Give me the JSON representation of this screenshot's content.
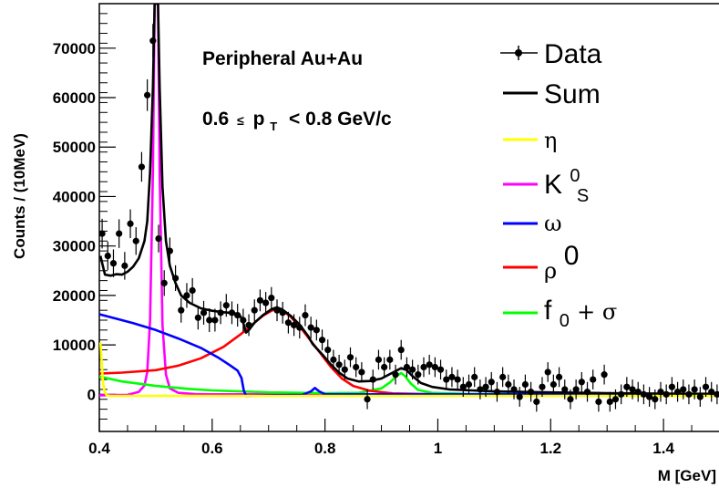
{
  "chart_data": {
    "type": "line",
    "annotation_lines": [
      {
        "text": "Peripheral Au+Au"
      },
      {
        "prefix": "0.6",
        "leq": "≤",
        "p": "p",
        "sub": "T",
        "suffix": "< 0.8 GeV/c"
      }
    ],
    "xlabel": "M [GeV]",
    "ylabel": "Counts / (10MeV)",
    "xlim": [
      0.4,
      1.5
    ],
    "ylim": [
      -7500,
      79000
    ],
    "xticks": [
      0.4,
      0.6,
      0.8,
      1,
      1.2,
      1.4
    ],
    "xtick_labels": [
      "0.4",
      "0.6",
      "0.8",
      "1",
      "1.2",
      "1.4"
    ],
    "yticks": [
      0,
      10000,
      20000,
      30000,
      40000,
      50000,
      60000,
      70000
    ],
    "ytick_labels": [
      "0",
      "10000",
      "20000",
      "30000",
      "40000",
      "50000",
      "60000",
      "70000"
    ],
    "legend": [
      {
        "label": "Data",
        "kind": "marker",
        "color": "#000000"
      },
      {
        "label": "Sum",
        "kind": "line",
        "color": "#000000"
      },
      {
        "label": "η",
        "kind": "line",
        "color": "#ffff00"
      },
      {
        "label": "K",
        "sup": "0",
        "sub": "S",
        "kind": "line",
        "color": "#ff00ff"
      },
      {
        "label": "ω",
        "kind": "line",
        "color": "#0000ff"
      },
      {
        "label": "ρ",
        "sup": "0",
        "kind": "line",
        "color": "#ff0000"
      },
      {
        "label": "f",
        "sub": "0",
        "suffix": " + σ",
        "kind": "line",
        "color": "#00ff00"
      }
    ],
    "data_points": [
      [
        0.405,
        32500,
        3000
      ],
      [
        0.415,
        28000,
        2900
      ],
      [
        0.425,
        26500,
        2800
      ],
      [
        0.435,
        32500,
        2900
      ],
      [
        0.445,
        26000,
        2800
      ],
      [
        0.455,
        34500,
        2900
      ],
      [
        0.465,
        31000,
        2800
      ],
      [
        0.475,
        46000,
        3000
      ],
      [
        0.485,
        60500,
        3200
      ],
      [
        0.495,
        71500,
        3400
      ],
      [
        0.505,
        31500,
        2800
      ],
      [
        0.515,
        22500,
        2600
      ],
      [
        0.525,
        29000,
        2700
      ],
      [
        0.535,
        23500,
        2600
      ],
      [
        0.545,
        17000,
        2500
      ],
      [
        0.555,
        20000,
        2500
      ],
      [
        0.565,
        21000,
        2500
      ],
      [
        0.575,
        15500,
        2400
      ],
      [
        0.585,
        16500,
        2400
      ],
      [
        0.595,
        15000,
        2400
      ],
      [
        0.605,
        15000,
        2300
      ],
      [
        0.615,
        16500,
        2300
      ],
      [
        0.625,
        18000,
        2300
      ],
      [
        0.635,
        16500,
        2300
      ],
      [
        0.645,
        16000,
        2300
      ],
      [
        0.655,
        15000,
        2300
      ],
      [
        0.665,
        14000,
        2200
      ],
      [
        0.675,
        17000,
        2200
      ],
      [
        0.685,
        19000,
        2200
      ],
      [
        0.695,
        18500,
        2200
      ],
      [
        0.705,
        19500,
        2200
      ],
      [
        0.715,
        17000,
        2200
      ],
      [
        0.725,
        16500,
        2200
      ],
      [
        0.735,
        14500,
        2200
      ],
      [
        0.745,
        14000,
        2200
      ],
      [
        0.755,
        13500,
        2200
      ],
      [
        0.765,
        16000,
        2200
      ],
      [
        0.775,
        13500,
        2200
      ],
      [
        0.785,
        13000,
        2100
      ],
      [
        0.795,
        11000,
        2100
      ],
      [
        0.805,
        9000,
        2100
      ],
      [
        0.815,
        7000,
        2000
      ],
      [
        0.825,
        6000,
        2000
      ],
      [
        0.835,
        5000,
        2000
      ],
      [
        0.845,
        7500,
        2000
      ],
      [
        0.855,
        5500,
        2000
      ],
      [
        0.865,
        4500,
        2000
      ],
      [
        0.875,
        -1000,
        2000
      ],
      [
        0.885,
        3000,
        2000
      ],
      [
        0.895,
        7000,
        2000
      ],
      [
        0.905,
        5500,
        2000
      ],
      [
        0.915,
        7000,
        2000
      ],
      [
        0.925,
        4000,
        2000
      ],
      [
        0.935,
        9000,
        2000
      ],
      [
        0.945,
        5500,
        2000
      ],
      [
        0.955,
        5000,
        2000
      ],
      [
        0.965,
        4000,
        2000
      ],
      [
        0.975,
        5500,
        2000
      ],
      [
        0.985,
        6000,
        2000
      ],
      [
        0.995,
        5500,
        2000
      ],
      [
        1.005,
        5000,
        2000
      ],
      [
        1.015,
        3000,
        2000
      ],
      [
        1.025,
        3500,
        2000
      ],
      [
        1.035,
        3000,
        2000
      ],
      [
        1.045,
        1500,
        2000
      ],
      [
        1.055,
        2000,
        2000
      ],
      [
        1.065,
        3500,
        2000
      ],
      [
        1.075,
        1000,
        2000
      ],
      [
        1.085,
        1500,
        2000
      ],
      [
        1.095,
        2500,
        2000
      ],
      [
        1.105,
        500,
        2000
      ],
      [
        1.115,
        3500,
        2000
      ],
      [
        1.125,
        2000,
        2000
      ],
      [
        1.135,
        1000,
        2000
      ],
      [
        1.145,
        -500,
        2000
      ],
      [
        1.155,
        2000,
        2000
      ],
      [
        1.165,
        500,
        2000
      ],
      [
        1.175,
        -1500,
        2000
      ],
      [
        1.185,
        1500,
        2000
      ],
      [
        1.195,
        4500,
        2000
      ],
      [
        1.205,
        2000,
        2000
      ],
      [
        1.215,
        3500,
        2000
      ],
      [
        1.225,
        1000,
        2000
      ],
      [
        1.235,
        -1000,
        2000
      ],
      [
        1.245,
        1000,
        2000
      ],
      [
        1.255,
        2500,
        2000
      ],
      [
        1.265,
        500,
        2000
      ],
      [
        1.275,
        3000,
        2000
      ],
      [
        1.285,
        -1500,
        2000
      ],
      [
        1.295,
        4000,
        2000
      ],
      [
        1.305,
        -1500,
        2000
      ],
      [
        1.315,
        -1000,
        2000
      ],
      [
        1.325,
        0,
        2000
      ],
      [
        1.335,
        1500,
        2000
      ],
      [
        1.345,
        1000,
        2000
      ],
      [
        1.355,
        500,
        2000
      ],
      [
        1.365,
        0,
        2000
      ],
      [
        1.375,
        -500,
        2000
      ],
      [
        1.385,
        -1000,
        2000
      ],
      [
        1.395,
        500,
        2000
      ],
      [
        1.405,
        0,
        2000
      ],
      [
        1.415,
        1500,
        2000
      ],
      [
        1.425,
        500,
        2000
      ],
      [
        1.435,
        1000,
        2000
      ],
      [
        1.445,
        0,
        2000
      ],
      [
        1.455,
        1000,
        2000
      ],
      [
        1.465,
        -500,
        2000
      ],
      [
        1.475,
        1500,
        2000
      ],
      [
        1.485,
        500,
        2000
      ],
      [
        1.495,
        0,
        2000
      ]
    ],
    "series": [
      {
        "name": "Sum",
        "color": "#000000",
        "points": [
          [
            0.402,
            28000
          ],
          [
            0.41,
            24200
          ],
          [
            0.42,
            24000
          ],
          [
            0.43,
            24300
          ],
          [
            0.44,
            24200
          ],
          [
            0.45,
            24800
          ],
          [
            0.46,
            25800
          ],
          [
            0.47,
            27500
          ],
          [
            0.48,
            31000
          ],
          [
            0.485,
            35000
          ],
          [
            0.49,
            45000
          ],
          [
            0.495,
            62000
          ],
          [
            0.498,
            79000
          ],
          [
            0.504,
            79000
          ],
          [
            0.507,
            62000
          ],
          [
            0.512,
            42000
          ],
          [
            0.518,
            31000
          ],
          [
            0.525,
            26000
          ],
          [
            0.535,
            22500
          ],
          [
            0.545,
            20000
          ],
          [
            0.56,
            18500
          ],
          [
            0.58,
            17400
          ],
          [
            0.6,
            16900
          ],
          [
            0.62,
            16600
          ],
          [
            0.64,
            16400
          ],
          [
            0.65,
            15800
          ],
          [
            0.655,
            14500
          ],
          [
            0.66,
            12500
          ],
          [
            0.665,
            13000
          ],
          [
            0.675,
            14500
          ],
          [
            0.69,
            16000
          ],
          [
            0.705,
            17200
          ],
          [
            0.715,
            17600
          ],
          [
            0.725,
            17100
          ],
          [
            0.74,
            15800
          ],
          [
            0.755,
            14100
          ],
          [
            0.77,
            11800
          ],
          [
            0.778,
            10200
          ],
          [
            0.785,
            9300
          ],
          [
            0.795,
            8100
          ],
          [
            0.81,
            6100
          ],
          [
            0.825,
            4400
          ],
          [
            0.84,
            3200
          ],
          [
            0.86,
            2600
          ],
          [
            0.88,
            2700
          ],
          [
            0.9,
            3200
          ],
          [
            0.92,
            4400
          ],
          [
            0.935,
            5300
          ],
          [
            0.945,
            4900
          ],
          [
            0.955,
            3700
          ],
          [
            0.97,
            2300
          ],
          [
            0.99,
            1500
          ],
          [
            1.02,
            1000
          ],
          [
            1.06,
            800
          ],
          [
            1.1,
            600
          ],
          [
            1.2,
            400
          ],
          [
            1.3,
            250
          ],
          [
            1.4,
            150
          ],
          [
            1.5,
            100
          ]
        ]
      },
      {
        "name": "η",
        "color": "#ffff00",
        "points": [
          [
            0.402,
            10500
          ],
          [
            0.404,
            7000
          ],
          [
            0.406,
            3000
          ],
          [
            0.409,
            600
          ],
          [
            0.413,
            -200
          ],
          [
            0.42,
            -300
          ],
          [
            0.5,
            -300
          ],
          [
            1.0,
            -300
          ],
          [
            1.5,
            -300
          ]
        ]
      },
      {
        "name": "K",
        "color": "#ff00ff",
        "points": [
          [
            0.4,
            -200
          ],
          [
            0.45,
            -100
          ],
          [
            0.47,
            500
          ],
          [
            0.48,
            1800
          ],
          [
            0.485,
            4500
          ],
          [
            0.49,
            15000
          ],
          [
            0.495,
            45000
          ],
          [
            0.498,
            79000
          ],
          [
            0.504,
            79000
          ],
          [
            0.507,
            45000
          ],
          [
            0.512,
            14000
          ],
          [
            0.518,
            4000
          ],
          [
            0.525,
            1200
          ],
          [
            0.54,
            300
          ],
          [
            0.57,
            50
          ],
          [
            0.6,
            0
          ],
          [
            1.5,
            0
          ]
        ]
      },
      {
        "name": "ω",
        "color": "#0000ff",
        "points": [
          [
            0.4,
            16200
          ],
          [
            0.43,
            15300
          ],
          [
            0.46,
            14400
          ],
          [
            0.5,
            13000
          ],
          [
            0.54,
            11300
          ],
          [
            0.58,
            9400
          ],
          [
            0.61,
            7500
          ],
          [
            0.63,
            6000
          ],
          [
            0.645,
            4800
          ],
          [
            0.652,
            3300
          ],
          [
            0.656,
            800
          ],
          [
            0.66,
            -300
          ],
          [
            0.7,
            -200
          ],
          [
            0.76,
            -100
          ],
          [
            0.775,
            600
          ],
          [
            0.782,
            1300
          ],
          [
            0.79,
            600
          ],
          [
            0.8,
            0
          ],
          [
            1.5,
            0
          ]
        ]
      },
      {
        "name": "ρ",
        "color": "#ff0000",
        "points": [
          [
            0.4,
            4200
          ],
          [
            0.44,
            4400
          ],
          [
            0.5,
            4900
          ],
          [
            0.54,
            5800
          ],
          [
            0.58,
            7300
          ],
          [
            0.62,
            9600
          ],
          [
            0.65,
            12100
          ],
          [
            0.67,
            14000
          ],
          [
            0.69,
            15900
          ],
          [
            0.705,
            16900
          ],
          [
            0.715,
            17300
          ],
          [
            0.725,
            17000
          ],
          [
            0.74,
            15600
          ],
          [
            0.76,
            13000
          ],
          [
            0.775,
            10800
          ],
          [
            0.79,
            8600
          ],
          [
            0.81,
            5600
          ],
          [
            0.83,
            3200
          ],
          [
            0.85,
            1700
          ],
          [
            0.88,
            700
          ],
          [
            0.92,
            200
          ],
          [
            1.0,
            0
          ],
          [
            1.5,
            0
          ]
        ]
      },
      {
        "name": "f",
        "color": "#00ff00",
        "points": [
          [
            0.4,
            3600
          ],
          [
            0.44,
            2600
          ],
          [
            0.5,
            1700
          ],
          [
            0.56,
            1100
          ],
          [
            0.6,
            800
          ],
          [
            0.7,
            400
          ],
          [
            0.8,
            250
          ],
          [
            0.86,
            300
          ],
          [
            0.9,
            1200
          ],
          [
            0.915,
            2400
          ],
          [
            0.928,
            3800
          ],
          [
            0.935,
            4300
          ],
          [
            0.942,
            3700
          ],
          [
            0.952,
            2200
          ],
          [
            0.965,
            900
          ],
          [
            0.99,
            300
          ],
          [
            1.05,
            100
          ],
          [
            1.2,
            50
          ],
          [
            1.5,
            0
          ]
        ]
      }
    ]
  }
}
